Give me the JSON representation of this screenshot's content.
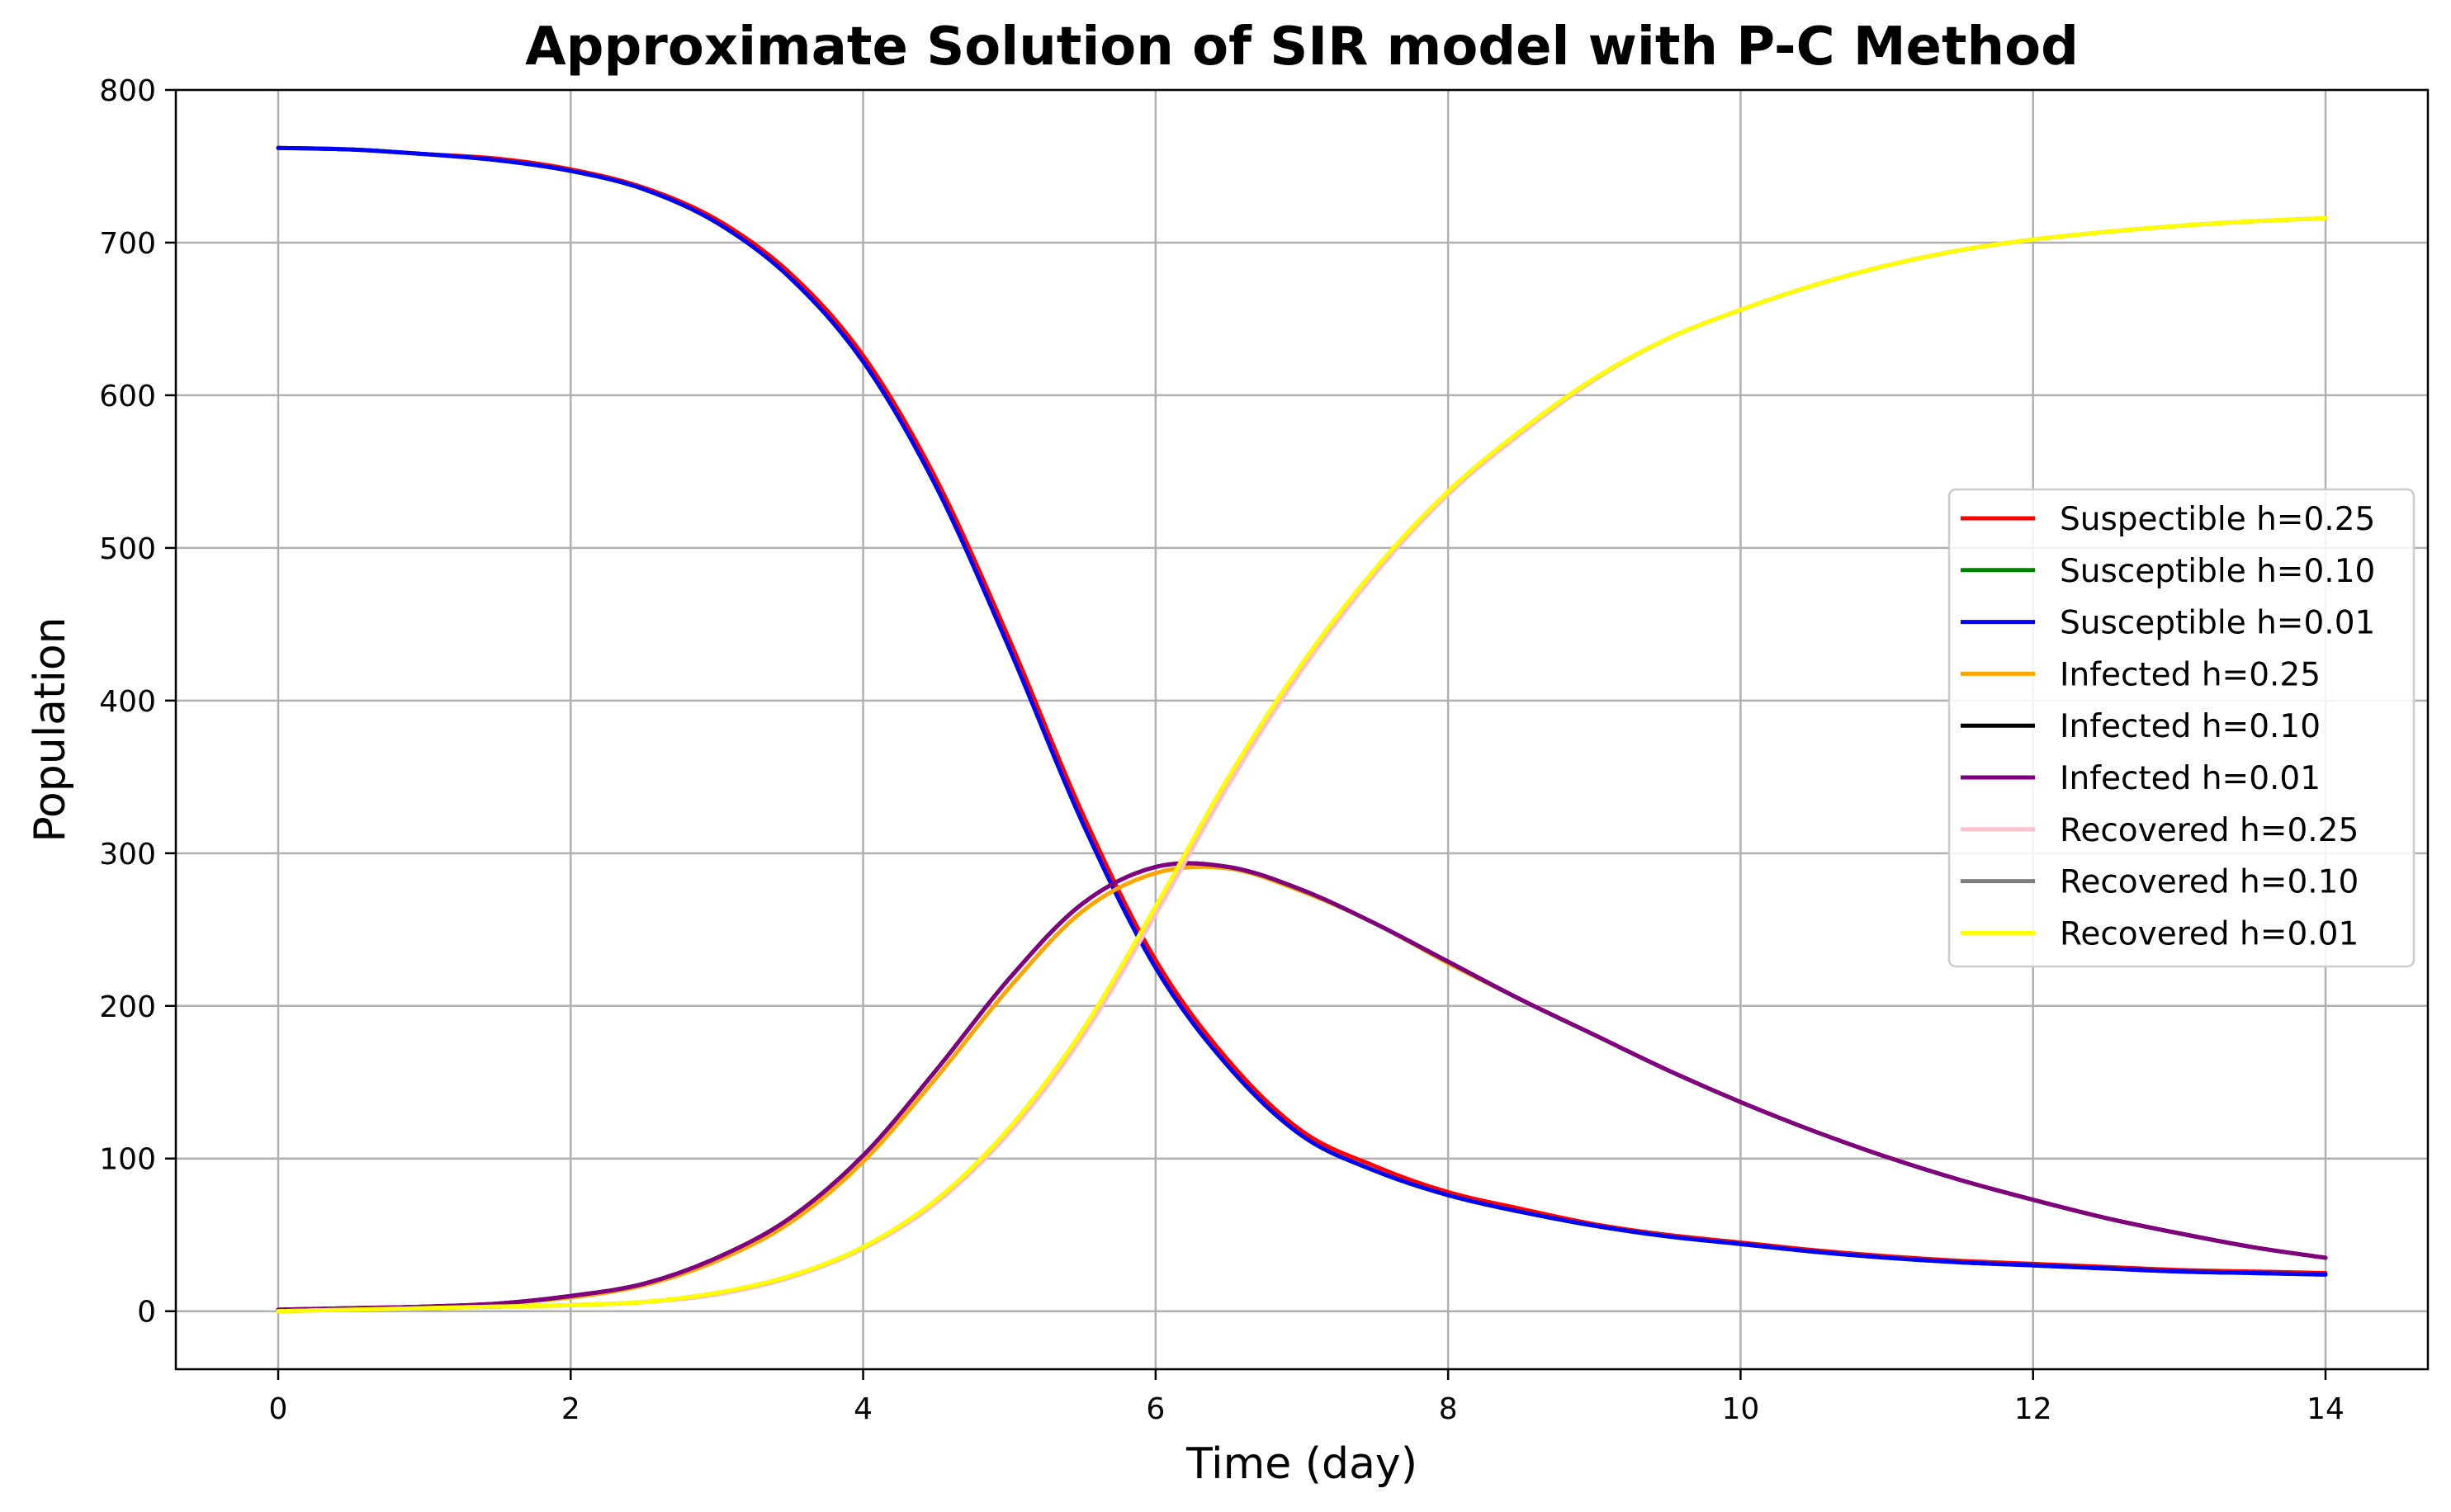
{
  "chart_data": {
    "type": "line",
    "title": "Approximate Solution of SIR model with P-C Method",
    "xlabel": "Time (day)",
    "ylabel": "Population",
    "xlim": [
      -0.7,
      14.7
    ],
    "ylim": [
      -38,
      800
    ],
    "xticks": [
      0,
      2,
      4,
      6,
      8,
      10,
      12,
      14
    ],
    "yticks": [
      0,
      100,
      200,
      300,
      400,
      500,
      600,
      700,
      800
    ],
    "grid": true,
    "legend_position": "center-right",
    "x": [
      0,
      0.5,
      1,
      1.5,
      2,
      2.5,
      3,
      3.5,
      4,
      4.5,
      5,
      5.5,
      6,
      6.5,
      7,
      7.5,
      8,
      8.5,
      9,
      9.5,
      10,
      10.5,
      11,
      11.5,
      12,
      12.5,
      13,
      13.5,
      14
    ],
    "series": [
      {
        "name": "Suspectible h=0.25",
        "color": "#ff0000",
        "values": [
          762,
          761,
          758,
          755,
          748,
          736,
          715,
          680,
          626,
          545,
          440,
          326,
          230,
          164,
          118,
          95,
          78,
          67,
          57,
          50,
          45,
          40,
          36,
          33,
          31,
          29,
          27,
          26,
          25
        ]
      },
      {
        "name": "Susceptible h=0.10",
        "color": "#008000",
        "values": [
          762,
          761,
          758,
          754,
          747,
          735,
          713,
          677,
          622,
          540,
          434,
          320,
          225,
          160,
          115,
          92,
          76,
          65,
          56,
          49,
          44,
          39,
          35,
          32,
          30,
          28,
          26,
          25,
          24
        ]
      },
      {
        "name": "Susceptible h=0.01",
        "color": "#0000ff",
        "values": [
          762,
          761,
          758,
          754,
          747,
          735,
          713,
          677,
          622,
          540,
          434,
          320,
          225,
          160,
          115,
          92,
          76,
          65,
          56,
          49,
          44,
          39,
          35,
          32,
          30,
          28,
          26,
          25,
          24
        ]
      },
      {
        "name": "Infected h=0.25",
        "color": "#ffa500",
        "values": [
          1,
          2,
          3,
          5,
          9,
          17,
          33,
          58,
          98,
          153,
          212,
          262,
          287,
          290,
          275,
          254,
          228,
          204,
          181,
          158,
          137,
          118,
          101,
          86,
          73,
          61,
          51,
          42,
          35
        ]
      },
      {
        "name": "Infected h=0.10",
        "color": "#000000",
        "values": [
          1,
          2,
          3,
          5,
          10,
          18,
          35,
          61,
          102,
          158,
          218,
          267,
          291,
          291,
          276,
          254,
          229,
          204,
          181,
          158,
          137,
          118,
          101,
          86,
          73,
          61,
          51,
          42,
          35
        ]
      },
      {
        "name": "Infected h=0.01",
        "color": "#800080",
        "values": [
          1,
          2,
          3,
          5,
          10,
          18,
          35,
          61,
          102,
          158,
          218,
          267,
          291,
          291,
          276,
          254,
          229,
          204,
          181,
          158,
          137,
          118,
          101,
          86,
          73,
          61,
          51,
          42,
          35
        ]
      },
      {
        "name": "Recovered h=0.25",
        "color": "#ffc0cb",
        "values": [
          0,
          1,
          2,
          3,
          4,
          6,
          11,
          22,
          41,
          71,
          117,
          180,
          260,
          345,
          420,
          483,
          535,
          575,
          610,
          637,
          656,
          672,
          685,
          695,
          702,
          707,
          711,
          714,
          716
        ]
      },
      {
        "name": "Recovered h=0.10",
        "color": "#808080",
        "values": [
          0,
          1,
          2,
          3,
          4,
          6,
          12,
          23,
          42,
          73,
          120,
          184,
          265,
          350,
          424,
          486,
          537,
          577,
          611,
          637,
          656,
          672,
          685,
          695,
          702,
          707,
          711,
          714,
          716
        ]
      },
      {
        "name": "Recovered h=0.01",
        "color": "#ffff00",
        "values": [
          0,
          1,
          2,
          3,
          4,
          6,
          12,
          23,
          42,
          73,
          120,
          184,
          265,
          350,
          424,
          486,
          537,
          577,
          611,
          637,
          656,
          672,
          685,
          695,
          702,
          707,
          711,
          714,
          716
        ]
      }
    ]
  }
}
